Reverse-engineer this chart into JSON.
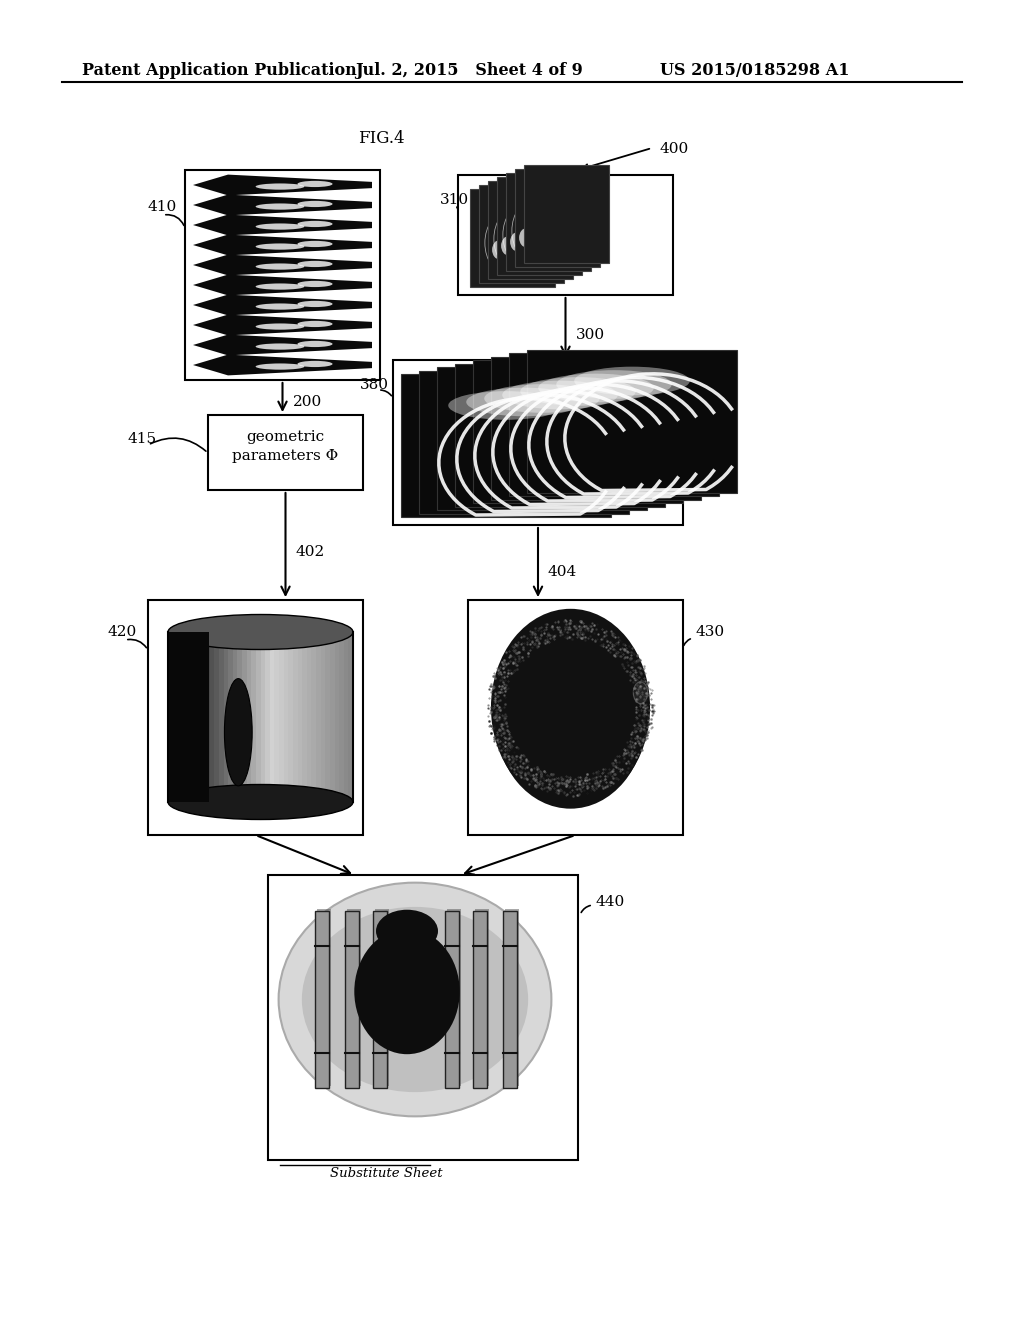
{
  "background_color": "#ffffff",
  "header_left": "Patent Application Publication",
  "header_mid": "Jul. 2, 2015   Sheet 4 of 9",
  "header_right": "US 2015/0185298 A1",
  "fig_label": "FIG.4",
  "ref_400": "400",
  "ref_410": "410",
  "ref_415": "415",
  "ref_420": "420",
  "ref_402": "402",
  "ref_310": "310",
  "ref_380": "380",
  "ref_300": "300",
  "ref_404": "404",
  "ref_430": "430",
  "ref_440": "440",
  "ref_200": "200",
  "geo_text": "geometric\nparameters Φ",
  "substitute_sheet": "Substitute Sheet"
}
